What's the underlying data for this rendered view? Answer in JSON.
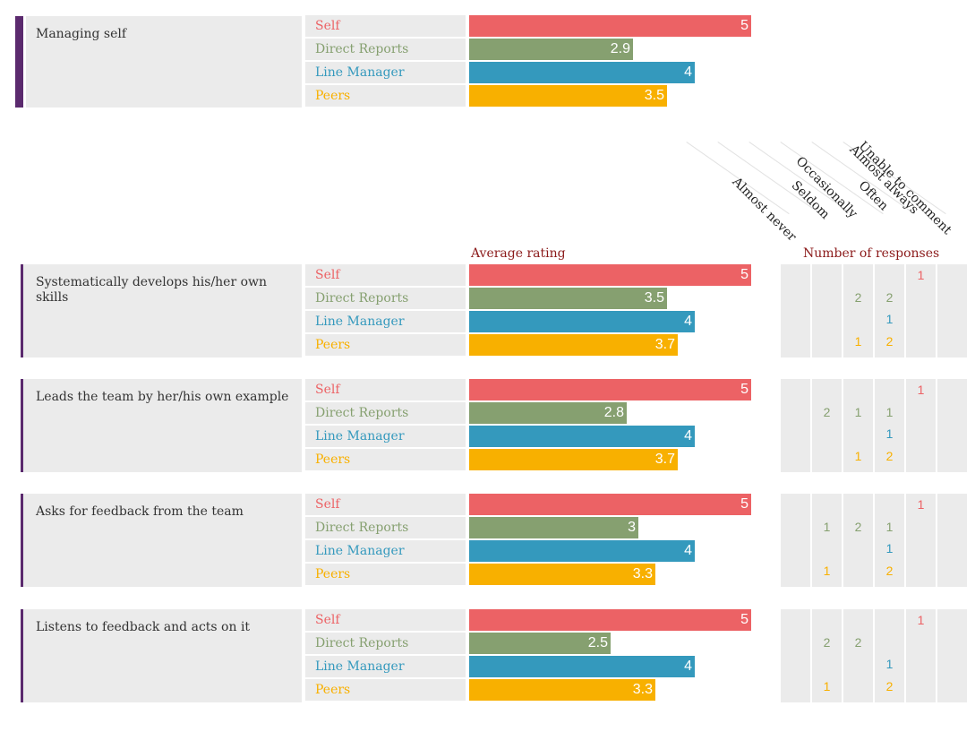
{
  "colors": {
    "self": "#ec6265",
    "direct_reports": "#86a070",
    "line_manager": "#3499bd",
    "peers": "#f8b000",
    "accent": "#5b2a6e",
    "header": "#8b1a1a"
  },
  "scale_max": 5,
  "summary": {
    "title": "Managing self",
    "ratings": [
      {
        "group": "Self",
        "value": 5
      },
      {
        "group": "Direct Reports",
        "value": 2.9
      },
      {
        "group": "Line Manager",
        "value": 4
      },
      {
        "group": "Peers",
        "value": 3.5
      }
    ]
  },
  "headers": {
    "average_rating": "Average rating",
    "number_of_responses": "Number of responses",
    "response_options": [
      "Almost never",
      "Seldom",
      "Occasionally",
      "Often",
      "Almost always",
      "Unable to comment"
    ]
  },
  "chart_data": {
    "type": "bar",
    "orientation": "horizontal",
    "xlim": [
      0,
      5
    ],
    "groups": [
      "Self",
      "Direct Reports",
      "Line Manager",
      "Peers"
    ],
    "items": [
      {
        "title": "Systematically develops his/her own skills",
        "values": [
          5,
          3.5,
          4,
          3.7
        ],
        "responses": [
          [
            "",
            "",
            "",
            "",
            "1",
            ""
          ],
          [
            "",
            "",
            "2",
            "2",
            "",
            ""
          ],
          [
            "",
            "",
            "",
            "1",
            "",
            ""
          ],
          [
            "",
            "",
            "1",
            "2",
            "",
            ""
          ]
        ]
      },
      {
        "title": "Leads the team by her/his own example",
        "values": [
          5,
          2.8,
          4,
          3.7
        ],
        "responses": [
          [
            "",
            "",
            "",
            "",
            "1",
            ""
          ],
          [
            "",
            "2",
            "1",
            "1",
            "",
            ""
          ],
          [
            "",
            "",
            "",
            "1",
            "",
            ""
          ],
          [
            "",
            "",
            "1",
            "2",
            "",
            ""
          ]
        ]
      },
      {
        "title": "Asks for feedback from the team",
        "values": [
          5,
          3,
          4,
          3.3
        ],
        "responses": [
          [
            "",
            "",
            "",
            "",
            "1",
            ""
          ],
          [
            "",
            "1",
            "2",
            "1",
            "",
            ""
          ],
          [
            "",
            "",
            "",
            "1",
            "",
            ""
          ],
          [
            "",
            "1",
            "",
            "2",
            "",
            ""
          ]
        ]
      },
      {
        "title": "Listens to feedback and acts on it",
        "values": [
          5,
          2.5,
          4,
          3.3
        ],
        "responses": [
          [
            "",
            "",
            "",
            "",
            "1",
            ""
          ],
          [
            "",
            "2",
            "2",
            "",
            "",
            ""
          ],
          [
            "",
            "",
            "",
            "1",
            "",
            ""
          ],
          [
            "",
            "1",
            "",
            "2",
            "",
            ""
          ]
        ]
      }
    ]
  }
}
